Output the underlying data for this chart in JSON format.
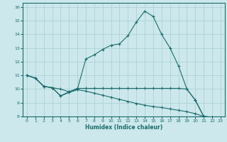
{
  "xlabel": "Humidex (Indice chaleur)",
  "background_color": "#cce8ec",
  "line_color": "#1a6b6b",
  "grid_color": "#a8cdd0",
  "xlim": [
    -0.5,
    23.5
  ],
  "ylim": [
    8,
    16.3
  ],
  "xtick_vals": [
    0,
    1,
    2,
    3,
    4,
    5,
    6,
    7,
    8,
    9,
    10,
    11,
    12,
    13,
    14,
    15,
    16,
    17,
    18,
    19,
    20,
    21,
    22,
    23
  ],
  "ytick_vals": [
    8,
    9,
    10,
    11,
    12,
    13,
    14,
    15,
    16
  ],
  "series1_x": [
    0,
    1,
    2,
    3,
    4,
    5,
    6,
    7,
    8,
    9,
    10,
    11,
    12,
    13,
    14,
    15,
    16,
    17,
    18,
    19,
    20,
    21,
    22,
    23
  ],
  "series1_y": [
    11.0,
    10.8,
    10.2,
    10.1,
    10.0,
    9.8,
    10.0,
    12.2,
    12.5,
    12.9,
    13.2,
    13.3,
    13.9,
    14.9,
    15.7,
    15.3,
    14.0,
    13.0,
    11.7,
    10.0,
    9.2,
    8.0,
    7.95,
    7.85
  ],
  "series2_x": [
    0,
    1,
    2,
    3,
    4,
    5,
    6,
    7,
    8,
    9,
    10,
    11,
    12,
    13,
    14,
    15,
    16,
    17,
    18,
    19,
    20,
    21,
    22,
    23
  ],
  "series2_y": [
    11.0,
    10.8,
    10.2,
    10.1,
    9.5,
    9.8,
    10.05,
    10.05,
    10.05,
    10.05,
    10.05,
    10.05,
    10.05,
    10.05,
    10.05,
    10.05,
    10.05,
    10.05,
    10.05,
    10.0,
    9.2,
    8.0,
    7.95,
    7.85
  ],
  "series3_x": [
    0,
    1,
    2,
    3,
    4,
    5,
    6,
    7,
    8,
    9,
    10,
    11,
    12,
    13,
    14,
    15,
    16,
    17,
    18,
    19,
    20,
    21,
    22,
    23
  ],
  "series3_y": [
    11.0,
    10.8,
    10.2,
    10.1,
    9.5,
    9.75,
    9.95,
    9.85,
    9.7,
    9.55,
    9.4,
    9.25,
    9.1,
    8.95,
    8.82,
    8.72,
    8.65,
    8.55,
    8.45,
    8.35,
    8.2,
    8.0,
    7.95,
    7.85
  ]
}
